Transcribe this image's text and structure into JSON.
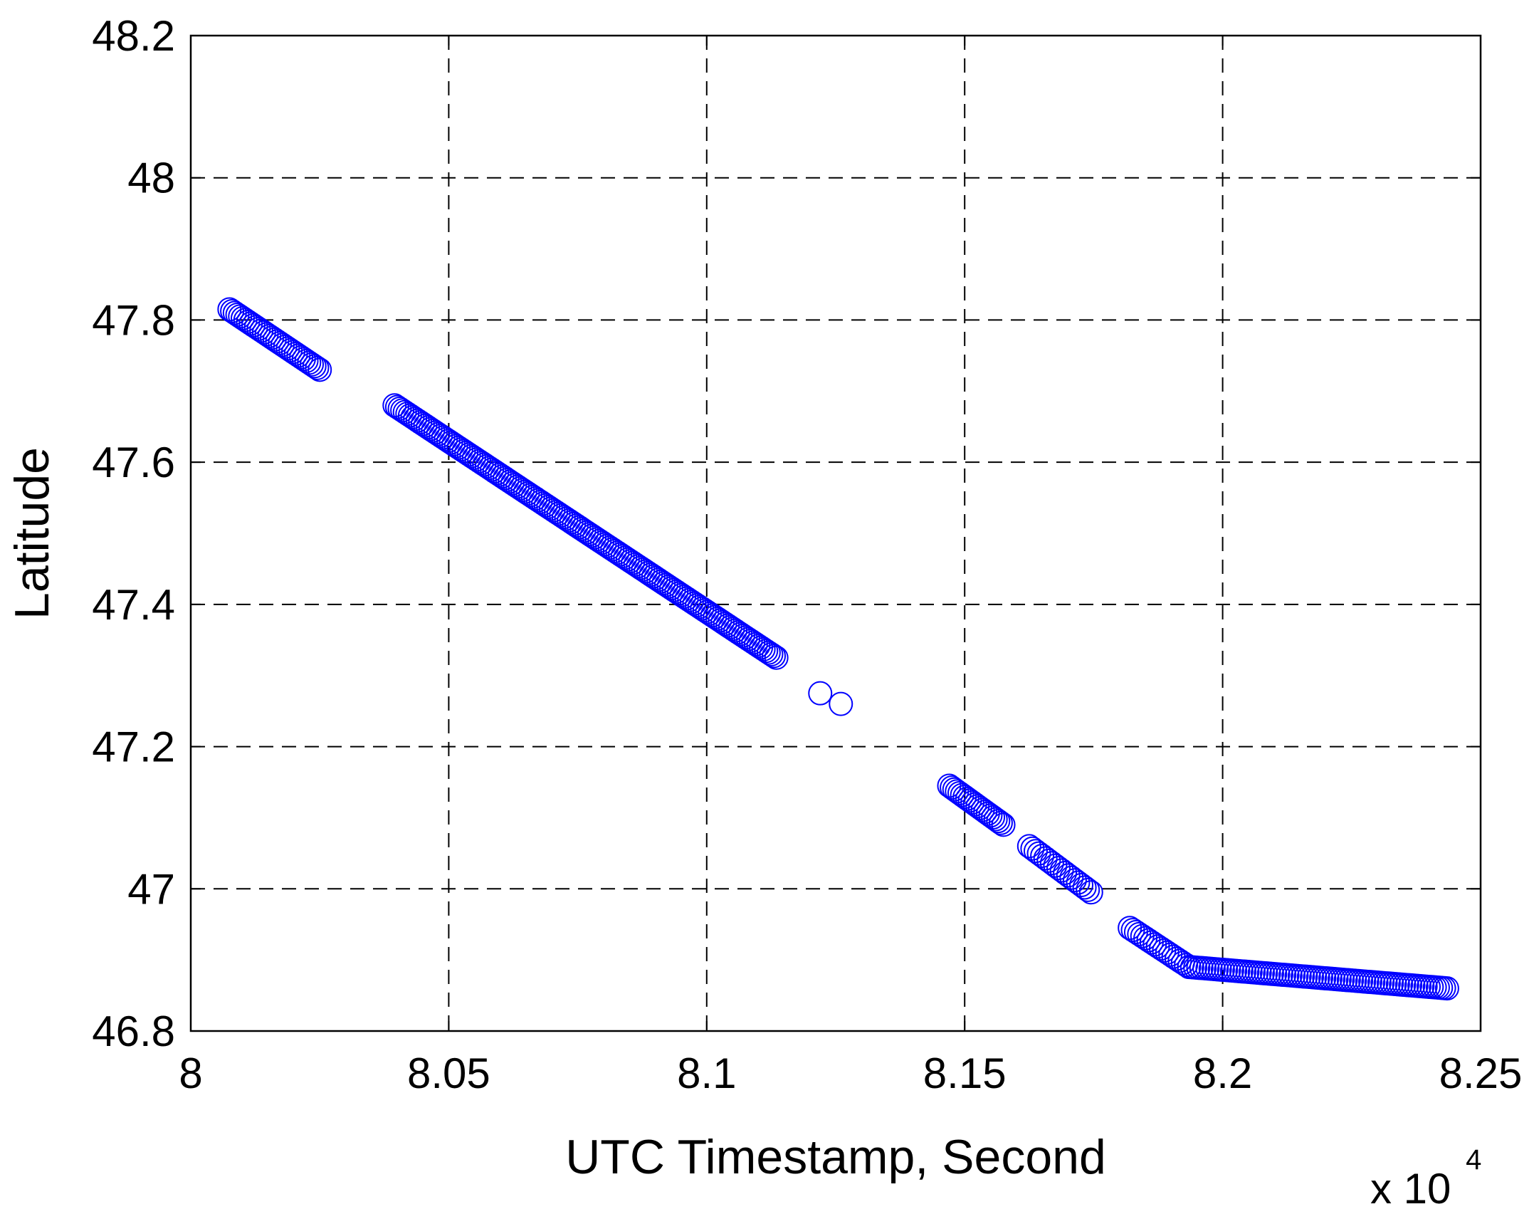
{
  "chart_data": {
    "type": "scatter",
    "xlabel": "UTC Timestamp, Second",
    "ylabel": "Latitude",
    "x_exponent_base": "x 10",
    "x_exponent_power": "4",
    "xlim": [
      8.0,
      8.25
    ],
    "ylim": [
      46.8,
      48.2
    ],
    "x_ticks": [
      8.0,
      8.05,
      8.1,
      8.15,
      8.2,
      8.25
    ],
    "x_tick_labels": [
      "8",
      "8.05",
      "8.1",
      "8.15",
      "8.2",
      "8.25"
    ],
    "y_ticks": [
      46.8,
      47.0,
      47.2,
      47.4,
      47.6,
      47.8,
      48.0,
      48.2
    ],
    "y_tick_labels": [
      "46.8",
      "47",
      "47.2",
      "47.4",
      "47.6",
      "47.8",
      "48",
      "48.2"
    ],
    "grid": true,
    "marker": "circle",
    "marker_color": "#0000ff",
    "segments": [
      {
        "x_start": 8.0075,
        "x_end": 8.025,
        "y_start": 47.815,
        "y_end": 47.73,
        "count": 35
      },
      {
        "x_start": 8.0395,
        "x_end": 8.1135,
        "y_start": 47.68,
        "y_end": 47.325,
        "count": 150
      },
      {
        "x_start": 8.122,
        "x_end": 8.126,
        "y_start": 47.275,
        "y_end": 47.26,
        "count": 2
      },
      {
        "x_start": 8.147,
        "x_end": 8.1575,
        "y_start": 47.145,
        "y_end": 47.09,
        "count": 22
      },
      {
        "x_start": 8.1625,
        "x_end": 8.1745,
        "y_start": 47.06,
        "y_end": 46.995,
        "count": 20
      },
      {
        "x_start": 8.182,
        "x_end": 8.1935,
        "y_start": 46.945,
        "y_end": 46.89,
        "count": 20
      },
      {
        "x_start": 8.1935,
        "x_end": 8.2435,
        "y_start": 46.89,
        "y_end": 46.86,
        "count": 85
      }
    ]
  }
}
